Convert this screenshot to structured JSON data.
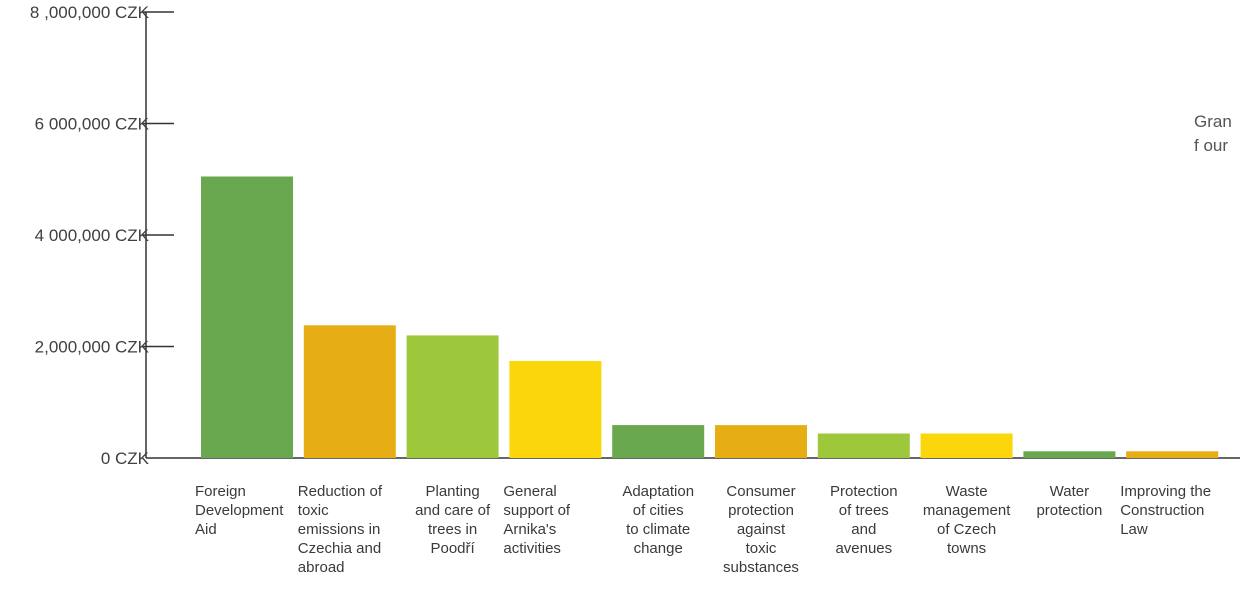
{
  "chart_data": {
    "type": "bar",
    "categories": [
      [
        "Foreign",
        "Development",
        "Aid"
      ],
      [
        "Reduction of",
        "toxic",
        "emissions in",
        "Czechia and",
        "abroad"
      ],
      [
        "Planting",
        "and care of",
        "trees in",
        "Poodří"
      ],
      [
        "General",
        "support of",
        "Arnika's",
        "activities"
      ],
      [
        "Adaptation",
        "of cities",
        "to climate",
        "change"
      ],
      [
        "Consumer",
        "protection",
        "against",
        "toxic",
        "substances"
      ],
      [
        "Protection",
        "of trees",
        "and",
        "avenues"
      ],
      [
        "Waste",
        "management",
        "of Czech",
        "towns"
      ],
      [
        "Water",
        "protection"
      ],
      [
        "Improving the",
        "Construction",
        "Law"
      ]
    ],
    "values": [
      5050000,
      2380000,
      2200000,
      1740000,
      590000,
      590000,
      440000,
      440000,
      120000,
      120000
    ],
    "colors": [
      "#6aa84f",
      "#e6ad14",
      "#9dc83b",
      "#fbd60b",
      "#6aa84f",
      "#e6ad14",
      "#9dc83b",
      "#fbd60b",
      "#6aa84f",
      "#e6ad14"
    ],
    "yticks": [
      {
        "value": 0,
        "label": "0 CZK"
      },
      {
        "value": 2000000,
        "label": "2,000,000 CZK"
      },
      {
        "value": 4000000,
        "label": "4 000,000 CZK"
      },
      {
        "value": 6000000,
        "label": "6 000,000 CZK"
      },
      {
        "value": 8000000,
        "label": "8 ,000,000 CZK"
      }
    ],
    "ylim": [
      0,
      8000000
    ],
    "grid": false,
    "side_note": [
      "Gran",
      "f our"
    ]
  }
}
